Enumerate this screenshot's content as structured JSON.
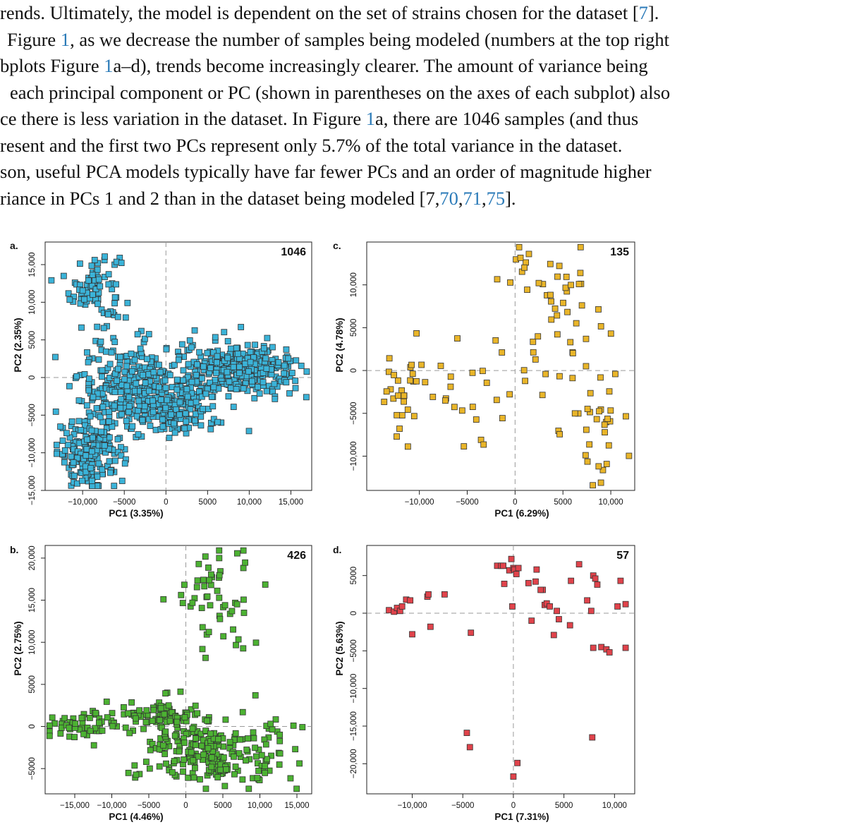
{
  "text_lines": [
    {
      "segments": [
        {
          "t": "rends. Ultimately, the model is dependent on the set of strains chosen for the dataset [",
          "link": false
        },
        {
          "t": "7",
          "link": true
        },
        {
          "t": "].",
          "link": false
        }
      ]
    },
    {
      "segments": [
        {
          "t": " Figure ",
          "link": false
        },
        {
          "t": "1",
          "link": true
        },
        {
          "t": ", as we decrease the number of samples being modeled (numbers at the top right",
          "link": false
        }
      ]
    },
    {
      "segments": [
        {
          "t": "bplots Figure ",
          "link": false
        },
        {
          "t": "1",
          "link": true
        },
        {
          "t": "a–d), trends become increasingly clearer. The amount of variance being",
          "link": false
        }
      ]
    },
    {
      "segments": [
        {
          "t": " each principal component or PC (shown in parentheses on the axes of each subplot) also",
          "link": false
        }
      ]
    },
    {
      "segments": [
        {
          "t": "ce there is less variation in the dataset. In Figure ",
          "link": false
        },
        {
          "t": "1",
          "link": true
        },
        {
          "t": "a, there are 1046 samples (and thus",
          "link": false
        }
      ]
    },
    {
      "segments": [
        {
          "t": "resent and the first two PCs represent only 5.7% of the total variance in the dataset.",
          "link": false
        }
      ]
    },
    {
      "segments": [
        {
          "t": "son, useful PCA models typically have far fewer PCs and an order of magnitude higher",
          "link": false
        }
      ]
    },
    {
      "segments": [
        {
          "t": "riance in PCs 1 and 2 than in the dataset being modeled [",
          "link": false
        },
        {
          "t": "7",
          "link": false
        },
        {
          "t": ",",
          "link": false
        },
        {
          "t": "70",
          "link": true
        },
        {
          "t": ",",
          "link": false
        },
        {
          "t": "71",
          "link": true
        },
        {
          "t": ",",
          "link": false
        },
        {
          "t": "75",
          "link": true
        },
        {
          "t": "].",
          "link": false
        }
      ]
    }
  ],
  "colors": {
    "link": "#2a7ab8",
    "panel_a": "#3bb3d8",
    "panel_b": "#4cb232",
    "panel_c": "#e9b529",
    "panel_d": "#e0434b"
  },
  "chart_data": [
    {
      "type": "scatter",
      "panel_letter": "a.",
      "count_label": "1046",
      "xlabel": "PC1 (3.35%)",
      "ylabel": "PC2 (2.35%)",
      "xlim": [
        -14500,
        17500
      ],
      "ylim": [
        -15000,
        18000
      ],
      "xticks": [
        -10000,
        -5000,
        0,
        5000,
        10000,
        15000
      ],
      "xtick_labels": [
        "−10,000",
        "−5000",
        "0",
        "5000",
        "10,000",
        "15,000"
      ],
      "yticks": [
        -15000,
        -10000,
        -5000,
        0,
        5000,
        10000,
        15000
      ],
      "ytick_labels": [
        "−15,000",
        "−10,000",
        "−5000",
        "0",
        "5000",
        "10,000",
        "15,000"
      ],
      "reference_lines": {
        "x": 0,
        "y": 0
      },
      "color": "#3bb3d8",
      "n_points": 1046,
      "clusters": [
        {
          "cx": -8500,
          "cy": 12000,
          "sx": 1500,
          "sy": 2500,
          "n": 90
        },
        {
          "cx": -9000,
          "cy": -10000,
          "sx": 2000,
          "sy": 2300,
          "n": 190
        },
        {
          "cx": -4000,
          "cy": -1000,
          "sx": 3200,
          "sy": 2800,
          "n": 300
        },
        {
          "cx": 9000,
          "cy": 1000,
          "sx": 3500,
          "sy": 1800,
          "n": 320
        },
        {
          "cx": 1500,
          "cy": -4000,
          "sx": 2500,
          "sy": 1800,
          "n": 146
        }
      ]
    },
    {
      "type": "scatter",
      "panel_letter": "b.",
      "count_label": "426",
      "xlabel": "PC1 (4.46%)",
      "ylabel": "PC2 (2.75%)",
      "xlim": [
        -19000,
        17000
      ],
      "ylim": [
        -8000,
        21500
      ],
      "xticks": [
        -15000,
        -10000,
        -5000,
        0,
        5000,
        10000,
        15000
      ],
      "xtick_labels": [
        "−15,000",
        "−10,000",
        "−5000",
        "0",
        "5000",
        "10,000",
        "15,000"
      ],
      "yticks": [
        -5000,
        0,
        5000,
        10000,
        15000,
        20000
      ],
      "ytick_labels": [
        "−5000",
        "0",
        "5000",
        "10,000",
        "15,000",
        "20,000"
      ],
      "reference_lines": {
        "x": 0,
        "y": 0
      },
      "color": "#4cb232",
      "n_points": 426,
      "clusters": [
        {
          "cx": -14000,
          "cy": 200,
          "sx": 2500,
          "sy": 700,
          "n": 45
        },
        {
          "cx": -5000,
          "cy": 1400,
          "sx": 3000,
          "sy": 700,
          "n": 70
        },
        {
          "cx": 0,
          "cy": -2500,
          "sx": 4000,
          "sy": 2000,
          "n": 140
        },
        {
          "cx": 7000,
          "cy": -3500,
          "sx": 4000,
          "sy": 2200,
          "n": 100
        },
        {
          "cx": 4000,
          "cy": 15000,
          "sx": 2800,
          "sy": 3200,
          "n": 55
        },
        {
          "cx": -500,
          "cy": 1500,
          "sx": 1500,
          "sy": 1500,
          "n": 16
        }
      ]
    },
    {
      "type": "scatter",
      "panel_letter": "c.",
      "count_label": "135",
      "xlabel": "PC1 (6.29%)",
      "ylabel": "PC2 (4.78%)",
      "xlim": [
        -15500,
        12500
      ],
      "ylim": [
        -14000,
        15000
      ],
      "xticks": [
        -10000,
        -5000,
        0,
        5000,
        10000
      ],
      "xtick_labels": [
        "−10,000",
        "−5000",
        "0",
        "5000",
        "10,000"
      ],
      "yticks": [
        -10000,
        -5000,
        0,
        5000,
        10000
      ],
      "ytick_labels": [
        "−10,000",
        "−5000",
        "0",
        "5000",
        "10,000"
      ],
      "reference_lines": {
        "x": 0,
        "y": 0
      },
      "color": "#e9b529",
      "n_points": 135,
      "clusters": [
        {
          "cx": -11500,
          "cy": -1500,
          "sx": 1300,
          "sy": 3000,
          "n": 30
        },
        {
          "cx": -4500,
          "cy": -3000,
          "sx": 2500,
          "sy": 3500,
          "n": 22
        },
        {
          "cx": 4000,
          "cy": 10000,
          "sx": 2500,
          "sy": 2500,
          "n": 30
        },
        {
          "cx": 4000,
          "cy": 2000,
          "sx": 2000,
          "sy": 2800,
          "n": 18
        },
        {
          "cx": 8500,
          "cy": -5000,
          "sx": 1800,
          "sy": 5000,
          "n": 35
        }
      ]
    },
    {
      "type": "scatter",
      "panel_letter": "d.",
      "count_label": "57",
      "xlabel": "PC1 (7.31%)",
      "ylabel": "PC2 (5.63%)",
      "xlim": [
        -14500,
        12000
      ],
      "ylim": [
        -24000,
        9000
      ],
      "xticks": [
        -10000,
        -5000,
        0,
        5000,
        10000
      ],
      "xtick_labels": [
        "−10,000",
        "−5000",
        "0",
        "5000",
        "10,000"
      ],
      "yticks": [
        -20000,
        -15000,
        -10000,
        -5000,
        0,
        5000
      ],
      "ytick_labels": [
        "−20,000",
        "−15,000",
        "−10,000",
        "−5000",
        "0",
        "5000"
      ],
      "reference_lines": {
        "x": 0,
        "y": 0
      },
      "color": "#e0434b",
      "n_points": 57,
      "points": [
        [
          -12300,
          400
        ],
        [
          -11800,
          200
        ],
        [
          -11500,
          700
        ],
        [
          -11200,
          300
        ],
        [
          -11000,
          900
        ],
        [
          -10600,
          1800
        ],
        [
          -10200,
          1700
        ],
        [
          -8500,
          2200
        ],
        [
          -8400,
          2500
        ],
        [
          -6800,
          2500
        ],
        [
          -10000,
          -2800
        ],
        [
          -8200,
          -1800
        ],
        [
          -4200,
          -2600
        ],
        [
          -1600,
          6300
        ],
        [
          -1200,
          6300
        ],
        [
          -1000,
          6300
        ],
        [
          -900,
          3900
        ],
        [
          -400,
          5700
        ],
        [
          -200,
          7200
        ],
        [
          0,
          6000
        ],
        [
          100,
          5800
        ],
        [
          300,
          5200
        ],
        [
          500,
          6000
        ],
        [
          -100,
          900
        ],
        [
          2300,
          5800
        ],
        [
          2200,
          4200
        ],
        [
          1500,
          4000
        ],
        [
          2900,
          3100
        ],
        [
          2700,
          3100
        ],
        [
          3100,
          1100
        ],
        [
          3300,
          1300
        ],
        [
          3600,
          900
        ],
        [
          4300,
          300
        ],
        [
          4500,
          -800
        ],
        [
          1800,
          -1000
        ],
        [
          5600,
          -1600
        ],
        [
          4000,
          -2900
        ],
        [
          5700,
          4300
        ],
        [
          6500,
          6500
        ],
        [
          7300,
          1700
        ],
        [
          7700,
          300
        ],
        [
          7900,
          5000
        ],
        [
          8100,
          4600
        ],
        [
          8300,
          3800
        ],
        [
          10600,
          4300
        ],
        [
          10300,
          900
        ],
        [
          11100,
          1200
        ],
        [
          7900,
          -4600
        ],
        [
          8700,
          -4500
        ],
        [
          9200,
          -4800
        ],
        [
          9500,
          -5200
        ],
        [
          11100,
          -4600
        ],
        [
          -4600,
          -15900
        ],
        [
          -4300,
          -17800
        ],
        [
          0,
          -21700
        ],
        [
          400,
          -19900
        ],
        [
          7800,
          -16500
        ]
      ]
    }
  ]
}
